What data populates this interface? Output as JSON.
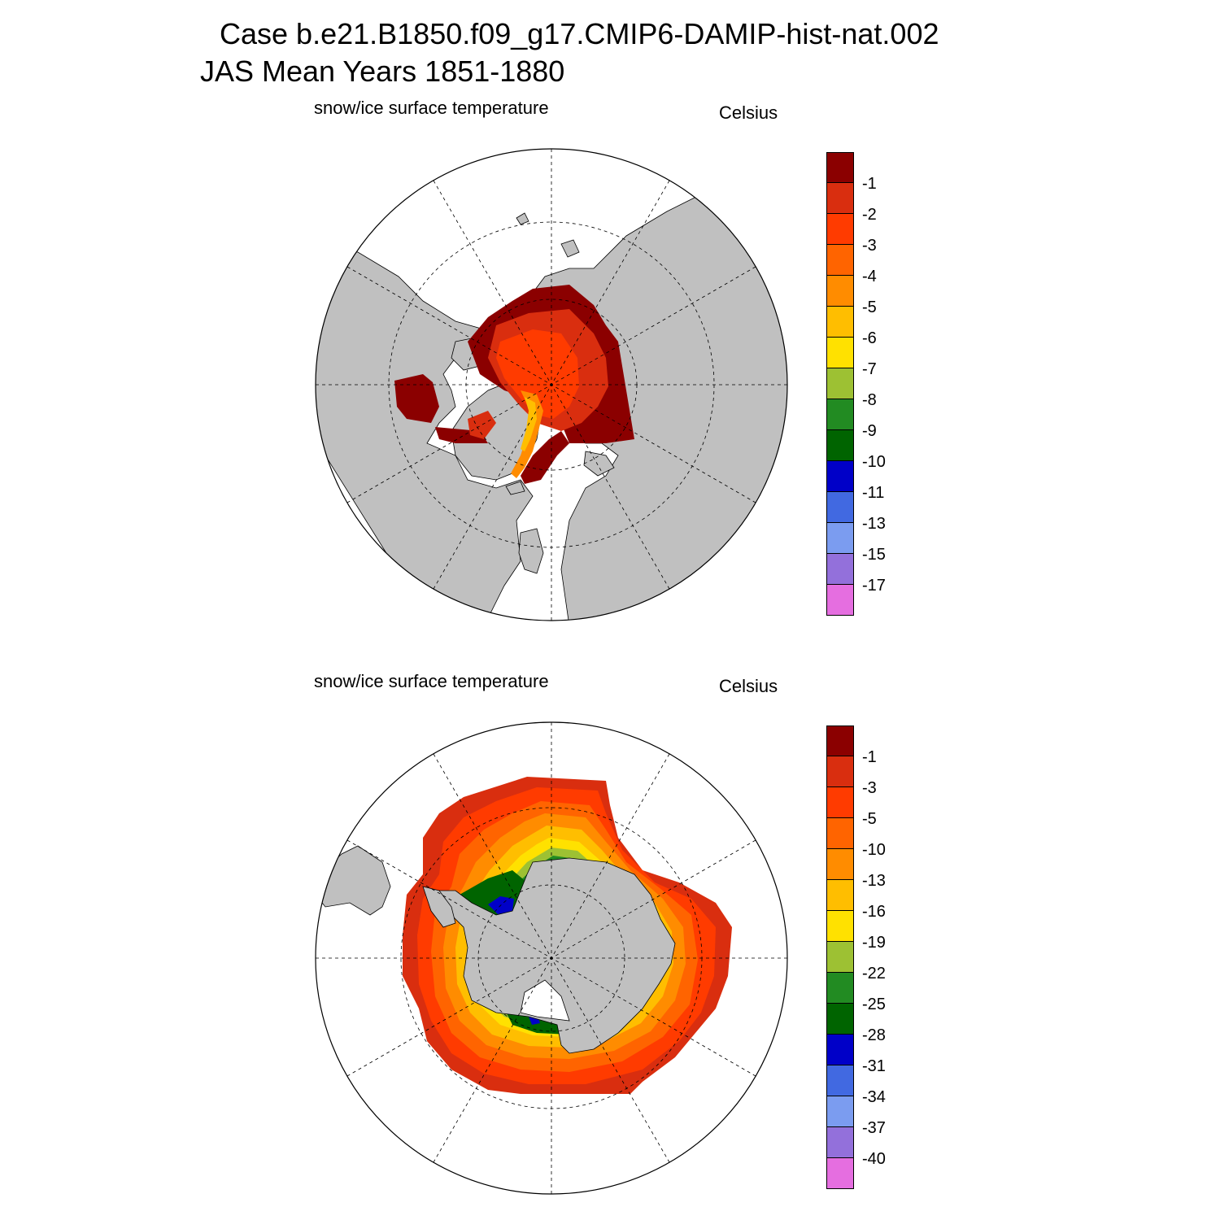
{
  "header": {
    "line1": "Case b.e21.B1850.f09_g17.CMIP6-DAMIP-hist-nat.002",
    "line2": "JAS Mean   Years 1851-1880"
  },
  "panels": [
    {
      "hemisphere": "north",
      "variable": "snow/ice surface temperature",
      "units": "Celsius",
      "colorbar": {
        "levels": [
          "-1",
          "-2",
          "-3",
          "-4",
          "-5",
          "-6",
          "-7",
          "-8",
          "-9",
          "-10",
          "-11",
          "-13",
          "-15",
          "-17"
        ],
        "colors": [
          "#8b0000",
          "#d92e0f",
          "#ff3b00",
          "#ff6400",
          "#ff8c00",
          "#ffbe00",
          "#ffe100",
          "#9dc133",
          "#228b22",
          "#006400",
          "#0000c8",
          "#4169e1",
          "#7b9cf0",
          "#9370db",
          "#e56ee0"
        ]
      }
    },
    {
      "hemisphere": "south",
      "variable": "snow/ice surface temperature",
      "units": "Celsius",
      "colorbar": {
        "levels": [
          "-1",
          "-3",
          "-5",
          "-10",
          "-13",
          "-16",
          "-19",
          "-22",
          "-25",
          "-28",
          "-31",
          "-34",
          "-37",
          "-40"
        ],
        "colors": [
          "#8b0000",
          "#d92e0f",
          "#ff3b00",
          "#ff6400",
          "#ff8c00",
          "#ffbe00",
          "#ffe100",
          "#9dc133",
          "#228b22",
          "#006400",
          "#0000c8",
          "#4169e1",
          "#7b9cf0",
          "#9370db",
          "#e56ee0"
        ]
      }
    }
  ],
  "map_style": {
    "land": "#c0c0c0",
    "ocean": "#ffffff",
    "coast": "#000000",
    "grid": "dashed"
  }
}
